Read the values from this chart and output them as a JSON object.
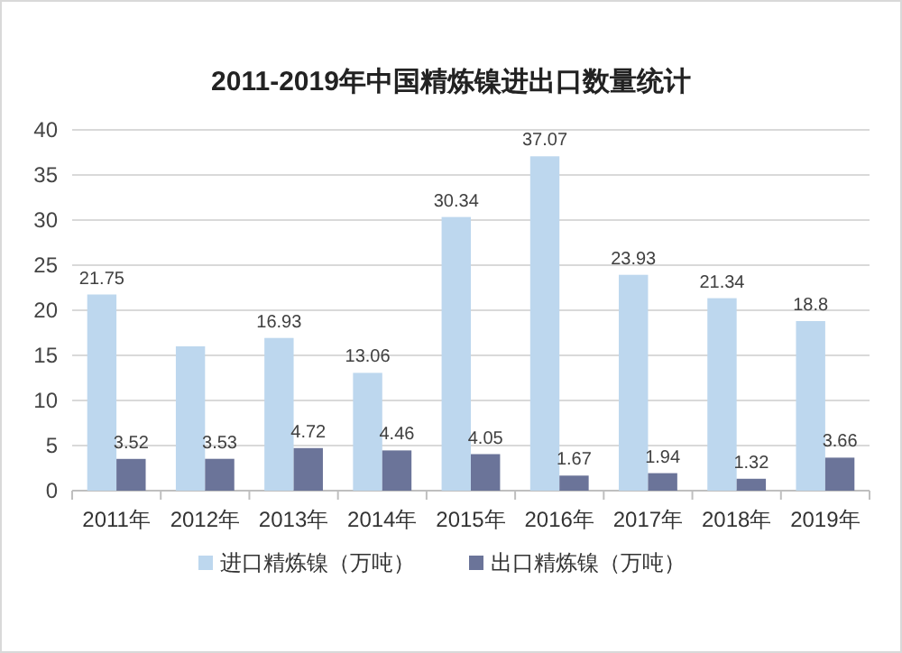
{
  "chart_data": {
    "type": "bar",
    "title": "2011-2019年中国精炼镍进出口数量统计",
    "categories": [
      "2011年",
      "2012年",
      "2013年",
      "2014年",
      "2015年",
      "2016年",
      "2017年",
      "2018年",
      "2019年"
    ],
    "series": [
      {
        "name": "进口精炼镍（万吨）",
        "color": "#bdd7ee",
        "values": [
          21.75,
          16,
          16.93,
          13.06,
          30.34,
          37.07,
          23.93,
          21.34,
          18.8
        ],
        "value_labels": [
          "21.75",
          null,
          "16.93",
          "13.06",
          "30.34",
          "37.07",
          "23.93",
          "21.34",
          "18.8"
        ]
      },
      {
        "name": "出口精炼镍（万吨）",
        "color": "#6b7499",
        "values": [
          3.52,
          3.53,
          4.72,
          4.46,
          4.05,
          1.67,
          1.94,
          1.32,
          3.66
        ],
        "value_labels": [
          "3.52",
          "3.53",
          "4.72",
          "4.46",
          "4.05",
          "1.67",
          "1.94",
          "1.32",
          "3.66"
        ]
      }
    ],
    "ylim": [
      0,
      40
    ],
    "yticks": [
      0,
      5,
      10,
      15,
      20,
      25,
      30,
      35,
      40
    ],
    "grid": "y",
    "legend": "bottom"
  }
}
